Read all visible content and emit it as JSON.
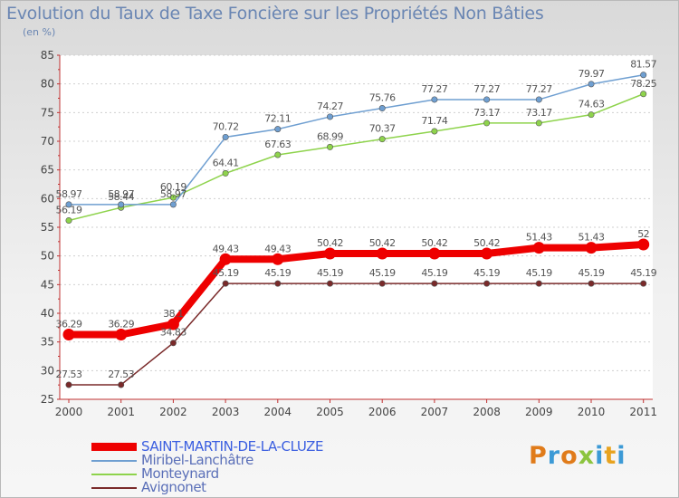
{
  "header": {
    "title": "Evolution du Taux de Taxe Foncière sur les Propriétés Non Bâties",
    "unit": "(en %)"
  },
  "logo": {
    "text": "Proxiti",
    "colors": [
      "#e07b1a",
      "#3c9ad6",
      "#e07b1a",
      "#8cc43f",
      "#3c9ad6",
      "#e8a31f",
      "#3c9ad6"
    ]
  },
  "chart_data": {
    "type": "line",
    "title": "Evolution du Taux de Taxe Foncière sur les Propriétés Non Bâties",
    "ylabel": "(en %)",
    "xlabel": "",
    "ylim": [
      25,
      85
    ],
    "yticks": [
      25,
      30,
      35,
      40,
      45,
      50,
      55,
      60,
      65,
      70,
      75,
      80,
      85
    ],
    "grid": "horizontal",
    "legend_position": "bottom-left",
    "x": [
      "2000",
      "2001",
      "2002",
      "2003",
      "2004",
      "2005",
      "2006",
      "2007",
      "2008",
      "2009",
      "2010",
      "2011"
    ],
    "series": [
      {
        "name": "SAINT-MARTIN-DE-LA-CLUZE",
        "color": "#ee0000",
        "values": [
          36.29,
          36.29,
          38.1,
          49.43,
          49.43,
          50.42,
          50.42,
          50.42,
          50.42,
          51.43,
          51.43,
          52
        ],
        "labels": [
          "36.29",
          "36.29",
          "38.1",
          "49.43",
          "49.43",
          "50.42",
          "50.42",
          "50.42",
          "50.42",
          "51.43",
          "51.43",
          "52"
        ]
      },
      {
        "name": "Miribel-Lanchâtre",
        "color": "#6f9fd1",
        "values": [
          58.97,
          58.97,
          58.97,
          70.72,
          72.11,
          74.27,
          75.76,
          77.27,
          77.27,
          77.27,
          79.97,
          81.57
        ],
        "labels": [
          "58.97",
          "58.97",
          "58.97",
          "70.72",
          "72.11",
          "74.27",
          "75.76",
          "77.27",
          "77.27",
          "77.27",
          "79.97",
          "81.57"
        ]
      },
      {
        "name": "Monteynard",
        "color": "#8ed34c",
        "values": [
          56.19,
          58.44,
          60.19,
          64.41,
          67.63,
          68.99,
          70.37,
          71.74,
          73.17,
          73.17,
          74.63,
          78.25
        ],
        "labels": [
          "56.19",
          "58.44",
          "60.19",
          "64.41",
          "67.63",
          "68.99",
          "70.37",
          "71.74",
          "73.17",
          "73.17",
          "74.63",
          "78.25"
        ]
      },
      {
        "name": "Avignonet",
        "color": "#7a2a2a",
        "values": [
          27.53,
          27.53,
          34.83,
          45.19,
          45.19,
          45.19,
          45.19,
          45.19,
          45.19,
          45.19,
          45.19,
          45.19
        ],
        "labels": [
          "27.53",
          "27.53",
          "34.83",
          "45.19",
          "45.19",
          "45.19",
          "45.19",
          "45.19",
          "45.19",
          "45.19",
          "45.19",
          "45.19"
        ]
      }
    ]
  }
}
